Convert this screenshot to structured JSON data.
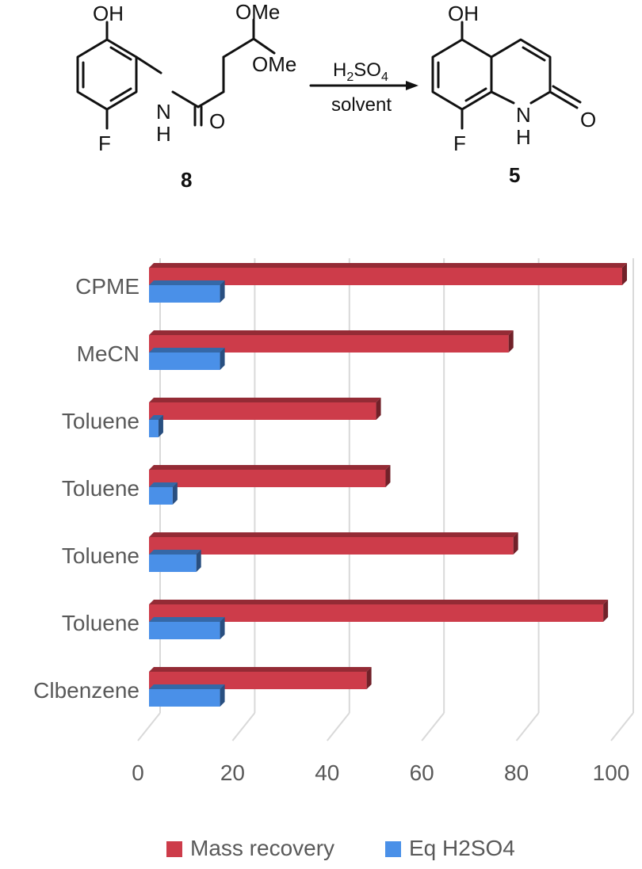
{
  "scheme": {
    "reactant": {
      "label": "8",
      "groups": {
        "oh": "OH",
        "f": "F",
        "n": "N",
        "h": "H",
        "o": "O",
        "ome_top": "OMe",
        "ome_right": "OMe"
      }
    },
    "conditions": {
      "reagent_base": "H",
      "reagent_sub2": "2",
      "reagent_mid": "SO",
      "reagent_sub4": "4",
      "solvent": "solvent"
    },
    "product": {
      "label": "5",
      "groups": {
        "oh": "OH",
        "f": "F",
        "n": "N",
        "h": "H",
        "o": "O"
      }
    }
  },
  "chart_data": {
    "type": "bar",
    "orientation": "horizontal",
    "categories": [
      "CPME",
      "MeCN",
      "Toluene",
      "Toluene",
      "Toluene",
      "Toluene",
      "Clbenzene"
    ],
    "series": [
      {
        "name": "Mass recovery",
        "color": "#cd3c4a",
        "values": [
          100,
          76,
          48,
          50,
          77,
          96,
          46
        ]
      },
      {
        "name": "Eq H2SO4",
        "color": "#4a90e8",
        "values": [
          15,
          15,
          2,
          5,
          10,
          15,
          15
        ]
      }
    ],
    "xlim": [
      0,
      100
    ],
    "xticks": [
      0,
      20,
      40,
      60,
      80,
      100
    ],
    "grid": true,
    "legend_position": "bottom"
  }
}
